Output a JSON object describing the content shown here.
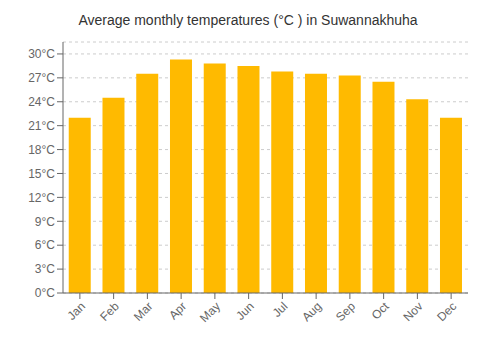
{
  "chart_data": {
    "type": "bar",
    "title": "Average monthly temperatures (°C ) in Suwannakhuha",
    "categories": [
      "Jan",
      "Feb",
      "Mar",
      "Apr",
      "May",
      "Jun",
      "Jul",
      "Aug",
      "Sep",
      "Oct",
      "Nov",
      "Dec"
    ],
    "values": [
      22.0,
      24.5,
      27.5,
      29.3,
      28.8,
      28.5,
      27.8,
      27.5,
      27.3,
      26.5,
      24.3,
      22.0
    ],
    "color": "#FFBA00",
    "ylim": [
      0,
      31.5
    ],
    "yticks": [
      {
        "value": 0,
        "label": "0°C"
      },
      {
        "value": 3,
        "label": "3°C"
      },
      {
        "value": 6,
        "label": "6°C"
      },
      {
        "value": 9,
        "label": "9°C"
      },
      {
        "value": 12,
        "label": "12°C"
      },
      {
        "value": 15,
        "label": "15°C"
      },
      {
        "value": 18,
        "label": "18°C"
      },
      {
        "value": 21,
        "label": "21°C"
      },
      {
        "value": 24,
        "label": "24°C"
      },
      {
        "value": 27,
        "label": "27°C"
      },
      {
        "value": 30,
        "label": "30°C"
      }
    ],
    "grid": true
  }
}
